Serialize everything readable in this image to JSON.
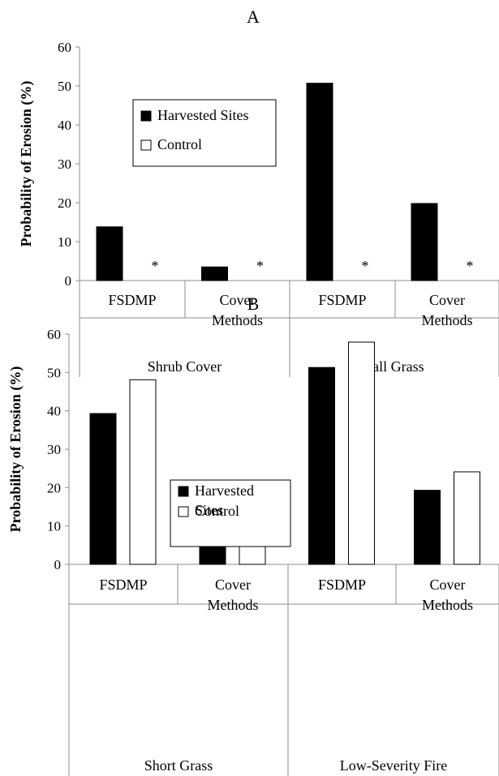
{
  "chart_data": [
    {
      "type": "bar",
      "title": "A",
      "ylabel": "Probability of Erosion (%)",
      "ylim": [
        0,
        60
      ],
      "yticks": [
        "0",
        "10",
        "20",
        "30",
        "40",
        "50",
        "60"
      ],
      "groups": [
        {
          "label": "Shrub Cover",
          "categories": [
            [
              "FSDMP"
            ],
            [
              "Cover",
              "Methods"
            ]
          ]
        },
        {
          "label": "Tall Grass",
          "categories": [
            [
              "FSDMP"
            ],
            [
              "Cover",
              "Methods"
            ]
          ]
        }
      ],
      "series": [
        {
          "name": "Harvested Sites",
          "values": [
            13.8,
            3.5,
            50.7,
            19.8
          ],
          "color": "#000000"
        },
        {
          "name": "Control",
          "values": [
            null,
            null,
            null,
            null
          ],
          "markers": [
            "*",
            "*",
            "*",
            "*"
          ],
          "color": "#ffffff"
        }
      ],
      "legend": {
        "placement": "center-left",
        "lines": [
          [
            "Harvested Sites"
          ],
          [
            "Control"
          ]
        ]
      }
    },
    {
      "type": "bar",
      "title": "B",
      "ylabel": "Probability of Erosion (%)",
      "ylim": [
        0,
        60
      ],
      "yticks": [
        "0",
        "10",
        "20",
        "30",
        "40",
        "50",
        "60"
      ],
      "groups": [
        {
          "label": "Short Grass",
          "categories": [
            [
              "FSDMP"
            ],
            [
              "Cover",
              "Methods"
            ]
          ]
        },
        {
          "label": "Low-Severity Fire",
          "categories": [
            [
              "FSDMP"
            ],
            [
              "Cover",
              "Methods"
            ]
          ]
        }
      ],
      "series": [
        {
          "name": "Harvested Sites",
          "values": [
            39.3,
            15.6,
            51.3,
            19.3
          ],
          "color": "#000000"
        },
        {
          "name": "Control",
          "values": [
            48.1,
            16.6,
            57.9,
            24.1
          ],
          "color": "#ffffff"
        }
      ],
      "legend": {
        "placement": "top-center",
        "lines": [
          [
            "Harvested",
            "Sites"
          ],
          [
            "Control"
          ]
        ]
      }
    }
  ]
}
